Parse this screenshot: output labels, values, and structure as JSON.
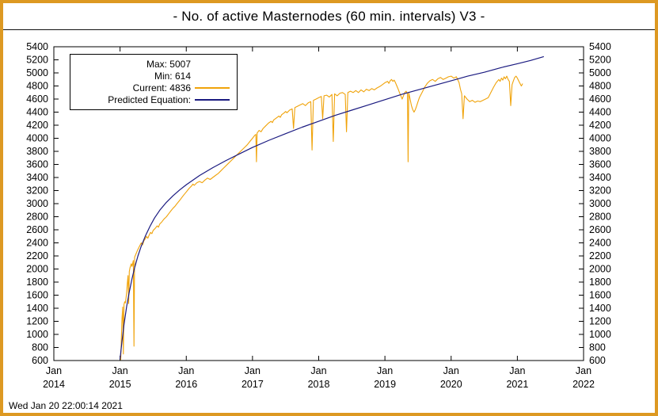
{
  "title": "- No. of active Masternodes (60 min. intervals) V3 -",
  "timestamp": "Wed Jan 20 22:00:14 2021",
  "legend": {
    "max_label": "Max: 5007",
    "min_label": "Min: 614",
    "current_label": "Current: 4836",
    "predicted_label": "Predicted Equation:"
  },
  "colors": {
    "frame_border": "#dd9922",
    "actual_line": "#f0a30a",
    "predicted_line": "#1a1a80",
    "axis": "#000000"
  },
  "chart_data": {
    "type": "line",
    "title": "- No. of active Masternodes (60 min. intervals) V3 -",
    "xlabel": "",
    "ylabel": "",
    "grid": false,
    "legend_position": "top-left",
    "xlim": [
      2014,
      2022
    ],
    "ylim": [
      600,
      5400
    ],
    "y_ticks": [
      600,
      800,
      1000,
      1200,
      1400,
      1600,
      1800,
      2000,
      2200,
      2400,
      2600,
      2800,
      3000,
      3200,
      3400,
      3600,
      3800,
      4000,
      4200,
      4400,
      4600,
      4800,
      5000,
      5200,
      5400
    ],
    "x_ticks": [
      {
        "x": 2014,
        "month": "Jan",
        "year": "2014"
      },
      {
        "x": 2015,
        "month": "Jan",
        "year": "2015"
      },
      {
        "x": 2016,
        "month": "Jan",
        "year": "2016"
      },
      {
        "x": 2017,
        "month": "Jan",
        "year": "2017"
      },
      {
        "x": 2018,
        "month": "Jan",
        "year": "2018"
      },
      {
        "x": 2019,
        "month": "Jan",
        "year": "2019"
      },
      {
        "x": 2020,
        "month": "Jan",
        "year": "2020"
      },
      {
        "x": 2021,
        "month": "Jan",
        "year": "2021"
      },
      {
        "x": 2022,
        "month": "Jan",
        "year": "2022"
      }
    ],
    "stats": {
      "max": 5007,
      "min": 614,
      "current": 4836
    },
    "series": [
      {
        "id": "actual-masternodes-line",
        "name": "Current: 4836",
        "color": "#f0a30a",
        "width": 1.1,
        "points": [
          [
            2015.0,
            660
          ],
          [
            2015.01,
            614
          ],
          [
            2015.02,
            950
          ],
          [
            2015.03,
            1250
          ],
          [
            2015.04,
            1420
          ],
          [
            2015.05,
            700
          ],
          [
            2015.06,
            1460
          ],
          [
            2015.07,
            1500
          ],
          [
            2015.08,
            1480
          ],
          [
            2015.09,
            1560
          ],
          [
            2015.1,
            1650
          ],
          [
            2015.11,
            1780
          ],
          [
            2015.12,
            1900
          ],
          [
            2015.13,
            1470
          ],
          [
            2015.14,
            1960
          ],
          [
            2015.15,
            2020
          ],
          [
            2015.17,
            2080
          ],
          [
            2015.18,
            2040
          ],
          [
            2015.2,
            2130
          ],
          [
            2015.21,
            820
          ],
          [
            2015.22,
            2180
          ],
          [
            2015.24,
            2230
          ],
          [
            2015.26,
            2280
          ],
          [
            2015.28,
            2320
          ],
          [
            2015.3,
            2360
          ],
          [
            2015.32,
            2400
          ],
          [
            2015.34,
            2370
          ],
          [
            2015.36,
            2430
          ],
          [
            2015.38,
            2460
          ],
          [
            2015.4,
            2500
          ],
          [
            2015.42,
            2470
          ],
          [
            2015.44,
            2520
          ],
          [
            2015.46,
            2560
          ],
          [
            2015.48,
            2540
          ],
          [
            2015.5,
            2590
          ],
          [
            2015.53,
            2620
          ],
          [
            2015.56,
            2660
          ],
          [
            2015.58,
            2640
          ],
          [
            2015.6,
            2690
          ],
          [
            2015.63,
            2720
          ],
          [
            2015.66,
            2760
          ],
          [
            2015.7,
            2800
          ],
          [
            2015.73,
            2840
          ],
          [
            2015.76,
            2880
          ],
          [
            2015.8,
            2930
          ],
          [
            2015.83,
            2960
          ],
          [
            2015.86,
            3000
          ],
          [
            2015.9,
            3050
          ],
          [
            2015.93,
            3090
          ],
          [
            2015.96,
            3130
          ],
          [
            2016.0,
            3180
          ],
          [
            2016.04,
            3230
          ],
          [
            2016.08,
            3270
          ],
          [
            2016.1,
            3300
          ],
          [
            2016.12,
            3280
          ],
          [
            2016.16,
            3320
          ],
          [
            2016.2,
            3340
          ],
          [
            2016.24,
            3320
          ],
          [
            2016.28,
            3360
          ],
          [
            2016.32,
            3390
          ],
          [
            2016.36,
            3370
          ],
          [
            2016.4,
            3400
          ],
          [
            2016.44,
            3430
          ],
          [
            2016.48,
            3460
          ],
          [
            2016.52,
            3500
          ],
          [
            2016.56,
            3540
          ],
          [
            2016.6,
            3580
          ],
          [
            2016.64,
            3620
          ],
          [
            2016.68,
            3660
          ],
          [
            2016.72,
            3700
          ],
          [
            2016.76,
            3740
          ],
          [
            2016.8,
            3780
          ],
          [
            2016.84,
            3820
          ],
          [
            2016.88,
            3860
          ],
          [
            2016.92,
            3900
          ],
          [
            2016.96,
            3950
          ],
          [
            2017.0,
            4000
          ],
          [
            2017.03,
            4040
          ],
          [
            2017.05,
            4060
          ],
          [
            2017.06,
            3640
          ],
          [
            2017.07,
            4080
          ],
          [
            2017.1,
            4120
          ],
          [
            2017.13,
            4100
          ],
          [
            2017.16,
            4150
          ],
          [
            2017.2,
            4190
          ],
          [
            2017.24,
            4230
          ],
          [
            2017.28,
            4260
          ],
          [
            2017.3,
            4240
          ],
          [
            2017.32,
            4280
          ],
          [
            2017.36,
            4310
          ],
          [
            2017.4,
            4340
          ],
          [
            2017.42,
            4320
          ],
          [
            2017.44,
            4360
          ],
          [
            2017.48,
            4390
          ],
          [
            2017.5,
            4410
          ],
          [
            2017.52,
            4390
          ],
          [
            2017.56,
            4430
          ],
          [
            2017.6,
            4450
          ],
          [
            2017.62,
            4150
          ],
          [
            2017.64,
            4470
          ],
          [
            2017.68,
            4490
          ],
          [
            2017.72,
            4510
          ],
          [
            2017.76,
            4530
          ],
          [
            2017.8,
            4500
          ],
          [
            2017.84,
            4540
          ],
          [
            2017.88,
            4560
          ],
          [
            2017.9,
            3820
          ],
          [
            2017.92,
            4580
          ],
          [
            2017.96,
            4600
          ],
          [
            2018.0,
            4620
          ],
          [
            2018.04,
            4640
          ],
          [
            2018.06,
            4300
          ],
          [
            2018.08,
            4650
          ],
          [
            2018.12,
            4660
          ],
          [
            2018.16,
            4630
          ],
          [
            2018.2,
            4670
          ],
          [
            2018.22,
            3950
          ],
          [
            2018.24,
            4680
          ],
          [
            2018.28,
            4650
          ],
          [
            2018.32,
            4690
          ],
          [
            2018.36,
            4700
          ],
          [
            2018.4,
            4670
          ],
          [
            2018.42,
            4100
          ],
          [
            2018.44,
            4700
          ],
          [
            2018.48,
            4720
          ],
          [
            2018.52,
            4700
          ],
          [
            2018.56,
            4730
          ],
          [
            2018.6,
            4700
          ],
          [
            2018.64,
            4740
          ],
          [
            2018.68,
            4710
          ],
          [
            2018.72,
            4750
          ],
          [
            2018.76,
            4730
          ],
          [
            2018.8,
            4760
          ],
          [
            2018.84,
            4740
          ],
          [
            2018.88,
            4770
          ],
          [
            2018.92,
            4790
          ],
          [
            2018.96,
            4820
          ],
          [
            2019.0,
            4850
          ],
          [
            2019.04,
            4870
          ],
          [
            2019.06,
            4840
          ],
          [
            2019.08,
            4880
          ],
          [
            2019.1,
            4900
          ],
          [
            2019.12,
            4870
          ],
          [
            2019.14,
            4890
          ],
          [
            2019.16,
            4850
          ],
          [
            2019.18,
            4800
          ],
          [
            2019.2,
            4750
          ],
          [
            2019.22,
            4700
          ],
          [
            2019.24,
            4650
          ],
          [
            2019.26,
            4600
          ],
          [
            2019.28,
            4650
          ],
          [
            2019.3,
            4700
          ],
          [
            2019.32,
            4720
          ],
          [
            2019.34,
            4680
          ],
          [
            2019.35,
            3640
          ],
          [
            2019.36,
            4700
          ],
          [
            2019.4,
            4500
          ],
          [
            2019.42,
            4440
          ],
          [
            2019.44,
            4400
          ],
          [
            2019.46,
            4440
          ],
          [
            2019.48,
            4500
          ],
          [
            2019.5,
            4560
          ],
          [
            2019.52,
            4620
          ],
          [
            2019.56,
            4700
          ],
          [
            2019.6,
            4780
          ],
          [
            2019.64,
            4840
          ],
          [
            2019.68,
            4880
          ],
          [
            2019.72,
            4900
          ],
          [
            2019.76,
            4870
          ],
          [
            2019.8,
            4910
          ],
          [
            2019.84,
            4930
          ],
          [
            2019.88,
            4900
          ],
          [
            2019.92,
            4920
          ],
          [
            2019.96,
            4940
          ],
          [
            2020.0,
            4950
          ],
          [
            2020.04,
            4920
          ],
          [
            2020.08,
            4940
          ],
          [
            2020.12,
            4850
          ],
          [
            2020.14,
            4750
          ],
          [
            2020.16,
            4680
          ],
          [
            2020.18,
            4300
          ],
          [
            2020.2,
            4650
          ],
          [
            2020.24,
            4600
          ],
          [
            2020.28,
            4560
          ],
          [
            2020.32,
            4580
          ],
          [
            2020.36,
            4550
          ],
          [
            2020.4,
            4570
          ],
          [
            2020.44,
            4560
          ],
          [
            2020.48,
            4580
          ],
          [
            2020.52,
            4600
          ],
          [
            2020.56,
            4620
          ],
          [
            2020.6,
            4700
          ],
          [
            2020.64,
            4780
          ],
          [
            2020.68,
            4850
          ],
          [
            2020.72,
            4900
          ],
          [
            2020.74,
            4870
          ],
          [
            2020.76,
            4920
          ],
          [
            2020.78,
            4890
          ],
          [
            2020.8,
            4940
          ],
          [
            2020.82,
            4910
          ],
          [
            2020.84,
            4950
          ],
          [
            2020.86,
            4900
          ],
          [
            2020.88,
            4870
          ],
          [
            2020.9,
            4500
          ],
          [
            2020.92,
            4820
          ],
          [
            2020.94,
            4880
          ],
          [
            2020.96,
            4930
          ],
          [
            2020.98,
            4950
          ],
          [
            2021.0,
            4920
          ],
          [
            2021.02,
            4880
          ],
          [
            2021.04,
            4840
          ],
          [
            2021.06,
            4800
          ],
          [
            2021.08,
            4836
          ]
        ]
      },
      {
        "id": "predicted-equation-line",
        "name": "Predicted Equation:",
        "color": "#1a1a80",
        "width": 1.2,
        "points": [
          [
            2015.0,
            620
          ],
          [
            2015.03,
            900
          ],
          [
            2015.06,
            1150
          ],
          [
            2015.1,
            1430
          ],
          [
            2015.14,
            1650
          ],
          [
            2015.18,
            1850
          ],
          [
            2015.22,
            2020
          ],
          [
            2015.27,
            2200
          ],
          [
            2015.32,
            2350
          ],
          [
            2015.38,
            2500
          ],
          [
            2015.45,
            2650
          ],
          [
            2015.52,
            2780
          ],
          [
            2015.6,
            2900
          ],
          [
            2015.7,
            3020
          ],
          [
            2015.8,
            3120
          ],
          [
            2015.9,
            3210
          ],
          [
            2016.0,
            3290
          ],
          [
            2016.2,
            3430
          ],
          [
            2016.4,
            3550
          ],
          [
            2016.6,
            3660
          ],
          [
            2016.8,
            3760
          ],
          [
            2017.0,
            3860
          ],
          [
            2017.25,
            3970
          ],
          [
            2017.5,
            4070
          ],
          [
            2017.75,
            4170
          ],
          [
            2018.0,
            4260
          ],
          [
            2018.25,
            4350
          ],
          [
            2018.5,
            4430
          ],
          [
            2018.75,
            4510
          ],
          [
            2019.0,
            4590
          ],
          [
            2019.25,
            4670
          ],
          [
            2019.5,
            4740
          ],
          [
            2019.75,
            4810
          ],
          [
            2020.0,
            4880
          ],
          [
            2020.25,
            4950
          ],
          [
            2020.5,
            5010
          ],
          [
            2020.75,
            5080
          ],
          [
            2021.0,
            5140
          ],
          [
            2021.2,
            5190
          ],
          [
            2021.4,
            5250
          ]
        ]
      }
    ]
  }
}
